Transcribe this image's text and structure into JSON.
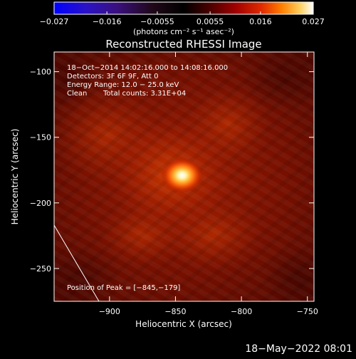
{
  "chart_data": {
    "type": "heatmap",
    "title": "Reconstructed RHESSI Image",
    "xlabel": "Heliocentric X (arcsec)",
    "ylabel": "Heliocentric Y (arcsec)",
    "x_ticks": [
      -900,
      -850,
      -800,
      -750
    ],
    "x_tick_labels": [
      "−900",
      "−850",
      "−800",
      "−750"
    ],
    "y_ticks": [
      -100,
      -150,
      -200,
      -250
    ],
    "y_tick_labels": [
      "−100",
      "−150",
      "−200",
      "−250"
    ],
    "xlim": [
      -942,
      -745
    ],
    "ylim": [
      -275,
      -85
    ],
    "colorbar": {
      "ticks": [
        -0.027,
        -0.016,
        -0.0055,
        0.0055,
        0.016,
        0.027
      ],
      "tick_labels": [
        "−0.027",
        "−0.016",
        "−0.0055",
        "0.0055",
        "0.016",
        "0.027"
      ],
      "range": [
        -0.027,
        0.027
      ],
      "unit_label": "(photons cm⁻² s⁻¹ asec⁻²)"
    },
    "annotations": {
      "time_range": "18−Oct−2014 14:02:16.000 to 14:08:16.000",
      "detectors": "Detectors: 3F 6F 9F, Att 0",
      "energy_range": "Energy Range: 12.0 − 25.0 keV",
      "clean_label": "Clean",
      "total_counts": "Total counts: 3.31E+04",
      "peak_position": "Position of Peak = [−845,−179]"
    },
    "peak": {
      "x": -845,
      "y": -179
    },
    "limb_line": [
      [
        -942,
        -217
      ],
      [
        -908,
        -275
      ]
    ]
  },
  "footer": {
    "timestamp": "18−May−2022 08:01"
  }
}
